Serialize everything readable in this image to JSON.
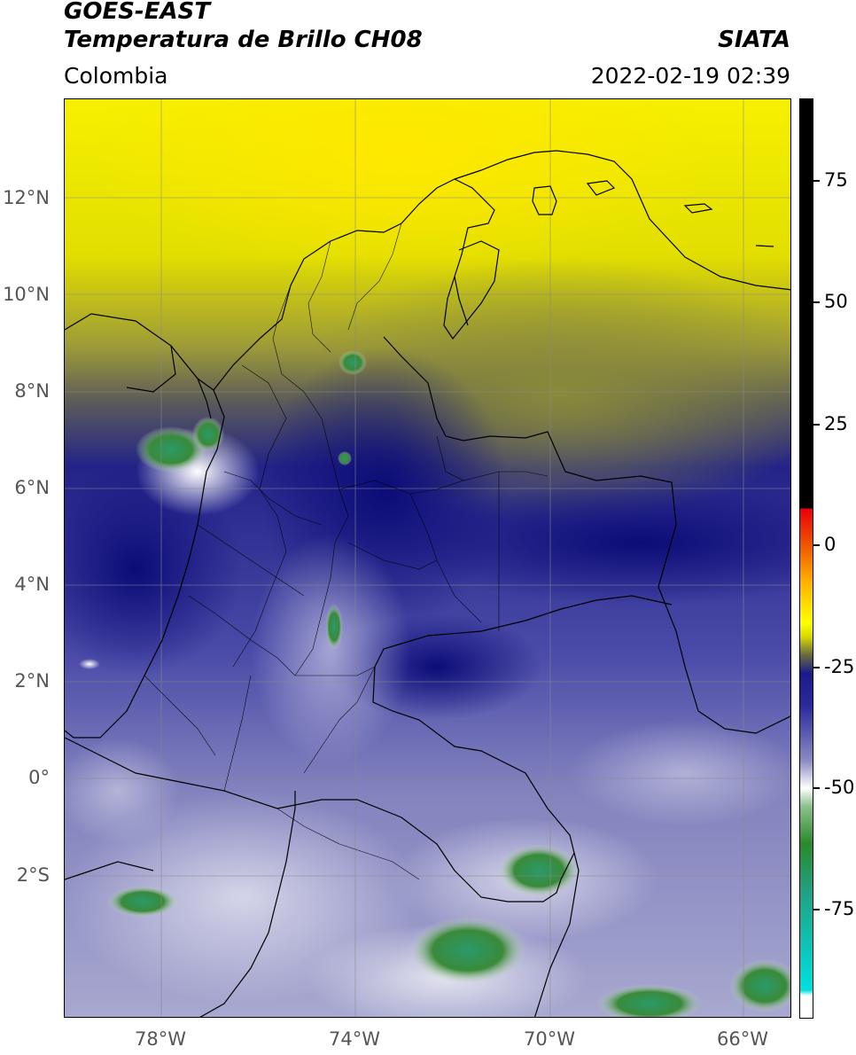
{
  "header": {
    "satellite": "GOES-EAST",
    "product": "Temperatura de Brillo CH08",
    "region": "Colombia",
    "agency": "SIATA",
    "datetime": "2022-02-19 02:39"
  },
  "map": {
    "lat_labels": [
      "12°N",
      "10°N",
      "8°N",
      "6°N",
      "4°N",
      "2°N",
      "0°",
      "2°S"
    ],
    "lon_labels": [
      "78°W",
      "74°W",
      "70°W",
      "66°W"
    ],
    "colorbar": {
      "ticks": [
        "75",
        "50",
        "25",
        "0",
        "-25",
        "-50",
        "-75"
      ],
      "colors": [
        "#000000",
        "#e8000a",
        "#ffb000",
        "#ffff00",
        "#1a1a8a",
        "#8a8ac4",
        "#ffffff",
        "#2a8a2a",
        "#00e0e0"
      ]
    }
  }
}
